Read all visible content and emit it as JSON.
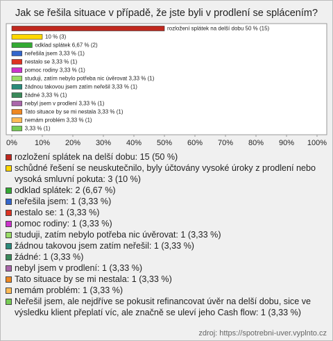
{
  "chart_data": {
    "type": "bar",
    "orientation": "horizontal",
    "title": "Jak se řešila situace v případě, že jste byli v prodlení se splácením?",
    "values": [
      50,
      10,
      6.67,
      3.33,
      3.33,
      3.33,
      3.33,
      3.33,
      3.33,
      3.33,
      3.33,
      3.33,
      3.33
    ],
    "value_labels": [
      "rozložení splátek na delší dobu 50 % (15)",
      "10 % (3)",
      "odklad splátek 6,67 % (2)",
      "neřešila jsem 3,33 % (1)",
      "nestalo se 3,33 % (1)",
      "pomoc rodiny 3,33 % (1)",
      "studuji, zatím nebylo potřeba nic úvěrovat 3,33 % (1)",
      "žádnou takovou jsem zatím neřešil 3,33 % (1)",
      "žádné 3,33 % (1)",
      "nebyl jsem v prodlení 3,33 % (1)",
      "Tato situace by se mi nestala 3,33 % (1)",
      "nemám problém 3,33 % (1)",
      "3,33 % (1)"
    ],
    "legend_labels": [
      "rozložení splátek na delší dobu: 15 (50 %)",
      "schůdné řešení se neuskutečnilo, byly účtovány vysoké úroky z prodlení nebo vysoká smluvní pokuta: 3 (10 %)",
      "odklad splátek: 2 (6,67 %)",
      "neřešila jsem: 1 (3,33 %)",
      "nestalo se: 1 (3,33 %)",
      "pomoc rodiny: 1 (3,33 %)",
      "studuji, zatím nebylo potřeba nic úvěrovat: 1 (3,33 %)",
      "žádnou takovou jsem zatím neřešil: 1 (3,33 %)",
      "žádné: 1 (3,33 %)",
      "nebyl jsem v prodlení: 1 (3,33 %)",
      "Tato situace by se mi nestala: 1 (3,33 %)",
      "nemám problém: 1 (3,33 %)",
      "Neřešil jsem, ale nejdříve se pokusit refinancovat úvěr na delší dobu, sice ve výsledku klient přeplatí víc, ale značně se uleví jeho Cash flow: 1 (3,33 %)"
    ],
    "colors": [
      "#c0281e",
      "#ffd700",
      "#33aa33",
      "#3366cc",
      "#dd3322",
      "#cc33cc",
      "#99dd66",
      "#2a8a7a",
      "#3a8a5a",
      "#aa66aa",
      "#ee8822",
      "#ffbb55",
      "#77cc55"
    ],
    "xlim": [
      0,
      100
    ],
    "xticks": [
      {
        "value": 0,
        "label": "0%"
      },
      {
        "value": 10,
        "label": "10%"
      },
      {
        "value": 20,
        "label": "20%"
      },
      {
        "value": 30,
        "label": "30%"
      },
      {
        "value": 40,
        "label": "40%"
      },
      {
        "value": 50,
        "label": "50%"
      },
      {
        "value": 60,
        "label": "60%"
      },
      {
        "value": 70,
        "label": "70%"
      },
      {
        "value": 80,
        "label": "80%"
      },
      {
        "value": 90,
        "label": "90%"
      },
      {
        "value": 100,
        "label": "100%"
      }
    ]
  },
  "source": "zdroj: https://spotrebni-uver.vyplnto.cz"
}
